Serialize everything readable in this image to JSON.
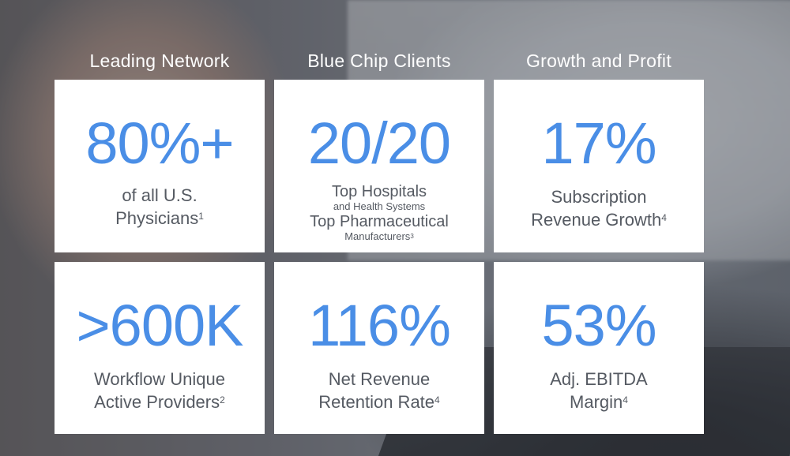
{
  "columns": [
    {
      "header": "Leading Network"
    },
    {
      "header": "Blue Chip Clients"
    },
    {
      "header": "Growth and Profit"
    }
  ],
  "tiles": {
    "physicians": {
      "value": "80%+",
      "line1": "of all U.S.",
      "line2": "Physicians",
      "note": "1"
    },
    "clients": {
      "value": "20/20",
      "hospitals": "Top Hospitals",
      "health_systems": "and Health Systems",
      "pharma": "Top Pharmaceutical",
      "manufacturers": "Manufacturers",
      "note": "3"
    },
    "subscription": {
      "value": "17%",
      "line1": "Subscription",
      "line2": "Revenue Growth",
      "note": "4"
    },
    "providers": {
      "value": ">600K",
      "line1": "Workflow Unique",
      "line2": "Active Providers",
      "note": "2"
    },
    "retention": {
      "value": "116%",
      "line1": "Net Revenue",
      "line2": "Retention Rate",
      "note": "4"
    },
    "ebitda": {
      "value": "53%",
      "line1": "Adj. EBITDA",
      "line2": "Margin",
      "note": "4"
    }
  },
  "colors": {
    "accent": "#4a8ee6",
    "text": "#555a62",
    "tile": "#ffffff"
  }
}
